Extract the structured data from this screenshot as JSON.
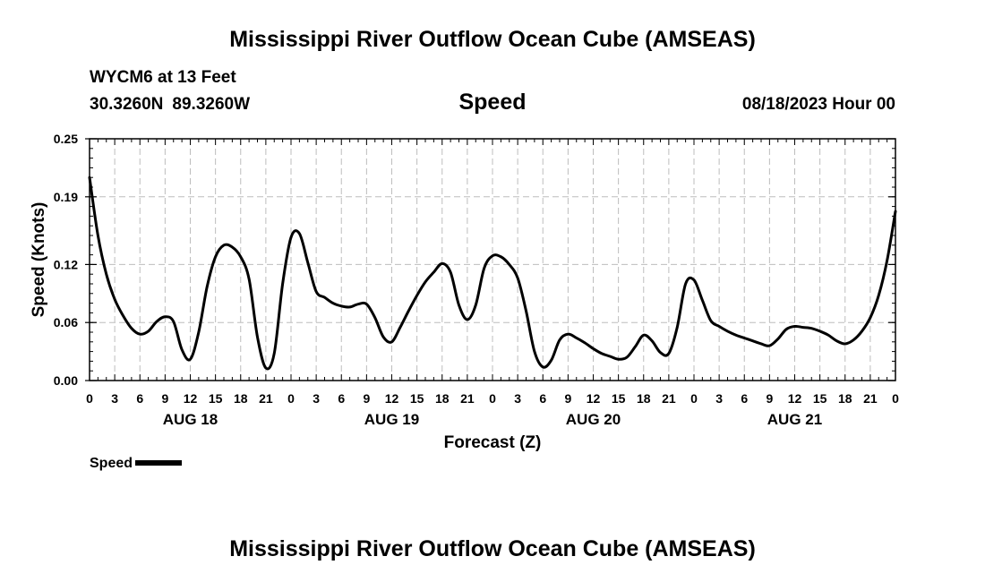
{
  "page": {
    "title_top": "Mississippi River Outflow Ocean Cube (AMSEAS)",
    "title_bottom": "Mississippi River Outflow Ocean Cube (AMSEAS)",
    "station": "WYCM6 at 13 Feet",
    "lat": "30.3260N",
    "lon": "89.3260W",
    "variable": "Speed",
    "datetime": "08/18/2023 Hour 00"
  },
  "legend": {
    "label": "Speed",
    "color": "#000000"
  },
  "chart_data": {
    "type": "line",
    "title": "Speed",
    "xlabel": "Forecast (Z)",
    "ylabel": "Speed (Knots)",
    "xlim": [
      0,
      96
    ],
    "ylim": [
      0,
      0.25
    ],
    "grid": true,
    "y_ticks": [
      0.0,
      0.06,
      0.12,
      0.19,
      0.25
    ],
    "y_tick_labels": [
      "0.00",
      "0.06",
      "0.12",
      "0.19",
      "0.25"
    ],
    "x_ticks": [
      0,
      3,
      6,
      9,
      12,
      15,
      18,
      21,
      24,
      27,
      30,
      33,
      36,
      39,
      42,
      45,
      48,
      51,
      54,
      57,
      60,
      63,
      66,
      69,
      72,
      75,
      78,
      81,
      84,
      87,
      90,
      93,
      96
    ],
    "x_tick_labels": [
      "0",
      "3",
      "6",
      "9",
      "12",
      "15",
      "18",
      "21",
      "0",
      "3",
      "6",
      "9",
      "12",
      "15",
      "18",
      "21",
      "0",
      "3",
      "6",
      "9",
      "12",
      "15",
      "18",
      "21",
      "0",
      "3",
      "6",
      "9",
      "12",
      "15",
      "18",
      "21",
      "0"
    ],
    "day_labels": [
      {
        "hour": 12,
        "label": "AUG 18"
      },
      {
        "hour": 36,
        "label": "AUG 19"
      },
      {
        "hour": 60,
        "label": "AUG 20"
      },
      {
        "hour": 84,
        "label": "AUG 21"
      }
    ],
    "series": [
      {
        "name": "Speed",
        "color": "#000000",
        "points": [
          [
            0,
            0.21
          ],
          [
            1,
            0.15
          ],
          [
            2,
            0.11
          ],
          [
            3,
            0.084
          ],
          [
            4,
            0.067
          ],
          [
            5,
            0.054
          ],
          [
            6,
            0.048
          ],
          [
            7,
            0.051
          ],
          [
            8,
            0.061
          ],
          [
            9,
            0.066
          ],
          [
            10,
            0.061
          ],
          [
            11,
            0.032
          ],
          [
            12,
            0.022
          ],
          [
            13,
            0.05
          ],
          [
            14,
            0.097
          ],
          [
            15,
            0.128
          ],
          [
            16,
            0.14
          ],
          [
            17,
            0.138
          ],
          [
            18,
            0.128
          ],
          [
            19,
            0.105
          ],
          [
            20,
            0.045
          ],
          [
            21,
            0.013
          ],
          [
            22,
            0.028
          ],
          [
            23,
            0.1
          ],
          [
            24,
            0.148
          ],
          [
            25,
            0.152
          ],
          [
            26,
            0.122
          ],
          [
            27,
            0.092
          ],
          [
            28,
            0.086
          ],
          [
            29,
            0.08
          ],
          [
            30,
            0.077
          ],
          [
            31,
            0.076
          ],
          [
            32,
            0.079
          ],
          [
            33,
            0.079
          ],
          [
            34,
            0.065
          ],
          [
            35,
            0.045
          ],
          [
            36,
            0.04
          ],
          [
            37,
            0.055
          ],
          [
            38,
            0.072
          ],
          [
            39,
            0.088
          ],
          [
            40,
            0.102
          ],
          [
            41,
            0.112
          ],
          [
            42,
            0.121
          ],
          [
            43,
            0.112
          ],
          [
            44,
            0.078
          ],
          [
            45,
            0.063
          ],
          [
            46,
            0.078
          ],
          [
            47,
            0.116
          ],
          [
            48,
            0.129
          ],
          [
            49,
            0.128
          ],
          [
            50,
            0.12
          ],
          [
            51,
            0.106
          ],
          [
            52,
            0.072
          ],
          [
            53,
            0.03
          ],
          [
            54,
            0.014
          ],
          [
            55,
            0.021
          ],
          [
            56,
            0.042
          ],
          [
            57,
            0.048
          ],
          [
            58,
            0.044
          ],
          [
            59,
            0.039
          ],
          [
            60,
            0.033
          ],
          [
            61,
            0.028
          ],
          [
            62,
            0.025
          ],
          [
            63,
            0.022
          ],
          [
            64,
            0.024
          ],
          [
            65,
            0.035
          ],
          [
            66,
            0.047
          ],
          [
            67,
            0.041
          ],
          [
            68,
            0.029
          ],
          [
            69,
            0.028
          ],
          [
            70,
            0.055
          ],
          [
            71,
            0.1
          ],
          [
            72,
            0.104
          ],
          [
            73,
            0.083
          ],
          [
            74,
            0.062
          ],
          [
            75,
            0.056
          ],
          [
            76,
            0.051
          ],
          [
            77,
            0.047
          ],
          [
            78,
            0.044
          ],
          [
            79,
            0.041
          ],
          [
            80,
            0.038
          ],
          [
            81,
            0.036
          ],
          [
            82,
            0.043
          ],
          [
            83,
            0.053
          ],
          [
            84,
            0.056
          ],
          [
            85,
            0.055
          ],
          [
            86,
            0.054
          ],
          [
            87,
            0.051
          ],
          [
            88,
            0.047
          ],
          [
            89,
            0.041
          ],
          [
            90,
            0.038
          ],
          [
            91,
            0.042
          ],
          [
            92,
            0.051
          ],
          [
            93,
            0.065
          ],
          [
            94,
            0.088
          ],
          [
            95,
            0.124
          ],
          [
            96,
            0.175
          ]
        ]
      }
    ]
  }
}
